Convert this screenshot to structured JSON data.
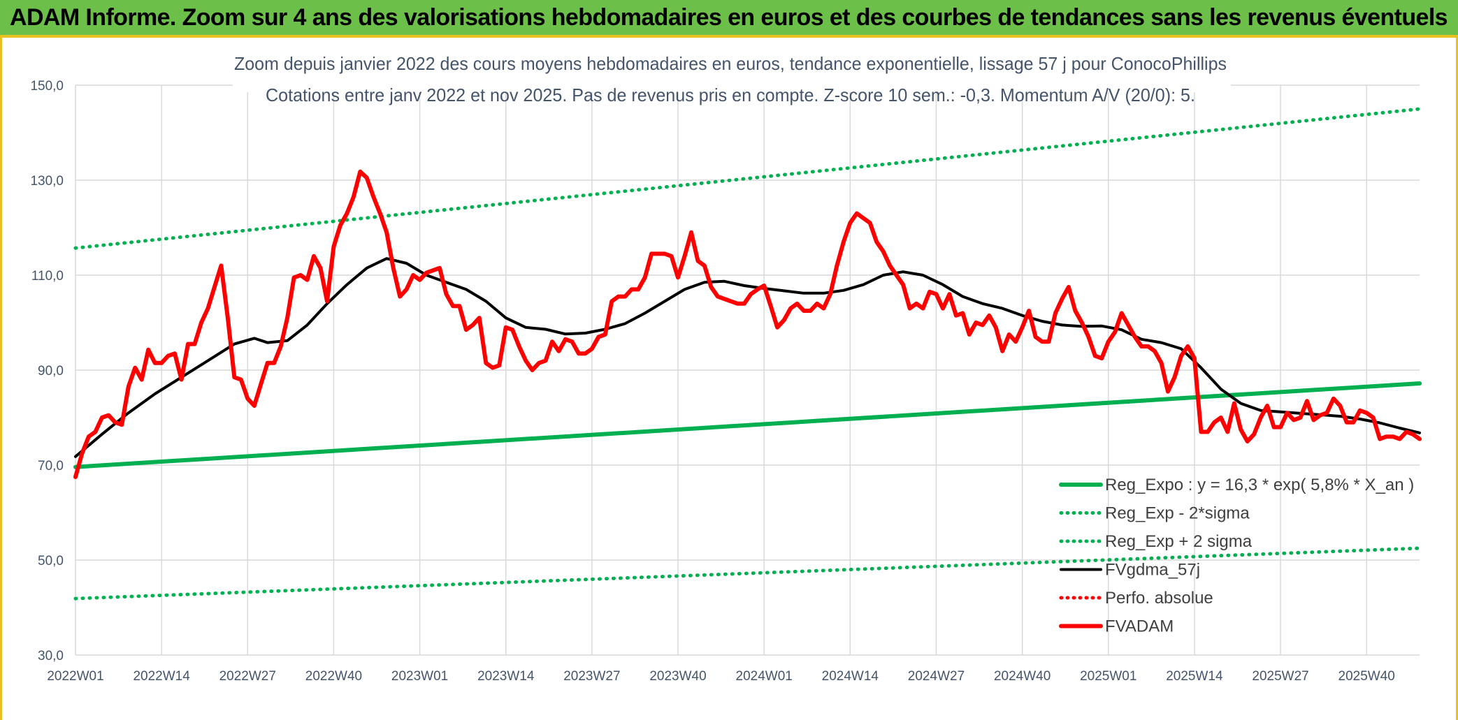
{
  "banner": {
    "title": "ADAM Informe. Zoom sur 4 ans des valorisations hebdomadaires en euros et des courbes de tendances sans les revenus éventuels"
  },
  "colors": {
    "banner_bg": "#6cc04a",
    "banner_border": "#e8c020",
    "reg_expo": "#00b050",
    "fvgdma": "#000000",
    "fvadam": "#ff0000",
    "grid": "#d9d9d9",
    "text": "#44546a"
  },
  "chart_data": {
    "type": "line",
    "title_line1": "Zoom depuis janvier 2022 des cours moyens hebdomadaires en euros, tendance exponentielle, lissage 57 j pour ConocoPhillips",
    "title_line2": "Cotations entre janv 2022 et nov 2025. Pas de revenus pris en compte. Z-score 10 sem.: -0,3. Momentum A/V (20/0): 5.",
    "ylim": [
      30,
      150
    ],
    "yticks": [
      30,
      50,
      70,
      90,
      110,
      130,
      150
    ],
    "ytick_labels": [
      "30,0",
      "50,0",
      "70,0",
      "90,0",
      "110,0",
      "130,0",
      "150,0"
    ],
    "n_weeks": 204,
    "xtick_labels": [
      "2022W01",
      "2022W14",
      "2022W27",
      "2022W40",
      "2023W01",
      "2023W14",
      "2023W27",
      "2023W40",
      "2024W01",
      "2024W14",
      "2024W27",
      "2024W40",
      "2025W01",
      "2025W14",
      "2025W27",
      "2025W40"
    ],
    "xtick_index": [
      0,
      13,
      26,
      39,
      52,
      65,
      78,
      91,
      104,
      117,
      130,
      143,
      156,
      169,
      182,
      195
    ],
    "grid": "horizontal and vertical",
    "legend_position": "bottom-right",
    "series": [
      {
        "name": "Reg_Expo : y = 16,3 * exp( 5,8% *  X_an )",
        "style": "solid-thick",
        "color": "#00b050",
        "points": [
          [
            0,
            69.6
          ],
          [
            203,
            87.2
          ]
        ]
      },
      {
        "name": "Reg_Exp - 2*sigma",
        "style": "dotted",
        "color": "#00b050",
        "points": [
          [
            0,
            41.9
          ],
          [
            203,
            52.5
          ]
        ]
      },
      {
        "name": "Reg_Exp + 2 sigma",
        "style": "dotted",
        "color": "#00b050",
        "points": [
          [
            0,
            115.7
          ],
          [
            203,
            145.0
          ]
        ]
      },
      {
        "name": "FVgdma_57j",
        "style": "solid",
        "color": "#000000",
        "points": [
          [
            0,
            71.8
          ],
          [
            4,
            76.5
          ],
          [
            8,
            81
          ],
          [
            12,
            85
          ],
          [
            16,
            88.5
          ],
          [
            20,
            92
          ],
          [
            24,
            95.5
          ],
          [
            27,
            96.7
          ],
          [
            29,
            95.8
          ],
          [
            32,
            96.2
          ],
          [
            35,
            99.5
          ],
          [
            38,
            104
          ],
          [
            41,
            108
          ],
          [
            44,
            111.5
          ],
          [
            47,
            113.5
          ],
          [
            50,
            112.5
          ],
          [
            53,
            110
          ],
          [
            56,
            108.5
          ],
          [
            59,
            107
          ],
          [
            62,
            104.5
          ],
          [
            65,
            101
          ],
          [
            68,
            99
          ],
          [
            71,
            98.6
          ],
          [
            74,
            97.6
          ],
          [
            77,
            97.8
          ],
          [
            80,
            98.6
          ],
          [
            83,
            99.8
          ],
          [
            86,
            102
          ],
          [
            89,
            104.5
          ],
          [
            92,
            107
          ],
          [
            95,
            108.5
          ],
          [
            98,
            108.7
          ],
          [
            101,
            107.8
          ],
          [
            104,
            107.2
          ],
          [
            107,
            106.7
          ],
          [
            110,
            106.2
          ],
          [
            113,
            106.2
          ],
          [
            116,
            106.8
          ],
          [
            119,
            108
          ],
          [
            122,
            110
          ],
          [
            125,
            110.7
          ],
          [
            128,
            110
          ],
          [
            131,
            108
          ],
          [
            134,
            105.5
          ],
          [
            137,
            104
          ],
          [
            140,
            103
          ],
          [
            143,
            101.5
          ],
          [
            146,
            100.3
          ],
          [
            149,
            99.5
          ],
          [
            152,
            99.2
          ],
          [
            155,
            99.3
          ],
          [
            158,
            98.5
          ],
          [
            161,
            96.5
          ],
          [
            164,
            95.8
          ],
          [
            167,
            94.5
          ],
          [
            170,
            90.5
          ],
          [
            173,
            86
          ],
          [
            176,
            83
          ],
          [
            179,
            81.5
          ],
          [
            182,
            81.2
          ],
          [
            185,
            80.9
          ],
          [
            188,
            80.6
          ],
          [
            191,
            80.3
          ],
          [
            194,
            79.7
          ],
          [
            197,
            78.9
          ],
          [
            200,
            77.8
          ],
          [
            203,
            76.8
          ]
        ]
      },
      {
        "name": "Perfo. absolue",
        "style": "dotted",
        "color": "#ff0000",
        "points": []
      },
      {
        "name": "FVADAM",
        "style": "solid-thick",
        "color": "#ff0000",
        "points": [
          [
            0,
            67.5
          ],
          [
            1,
            72.5
          ],
          [
            2,
            76
          ],
          [
            3,
            77
          ],
          [
            4,
            80
          ],
          [
            5,
            80.5
          ],
          [
            6,
            79
          ],
          [
            7,
            78.5
          ],
          [
            8,
            86.5
          ],
          [
            9,
            90.5
          ],
          [
            10,
            88
          ],
          [
            11,
            94.3
          ],
          [
            12,
            91.5
          ],
          [
            13,
            91.5
          ],
          [
            14,
            93
          ],
          [
            15,
            93.5
          ],
          [
            16,
            88
          ],
          [
            17,
            95.5
          ],
          [
            18,
            95.5
          ],
          [
            19,
            100
          ],
          [
            20,
            103
          ],
          [
            21,
            107.5
          ],
          [
            22,
            112
          ],
          [
            23,
            101
          ],
          [
            24,
            88.5
          ],
          [
            25,
            88
          ],
          [
            26,
            84
          ],
          [
            27,
            82.5
          ],
          [
            28,
            87
          ],
          [
            29,
            91.5
          ],
          [
            30,
            91.5
          ],
          [
            31,
            95
          ],
          [
            32,
            101
          ],
          [
            33,
            109.5
          ],
          [
            34,
            110
          ],
          [
            35,
            109
          ],
          [
            36,
            114
          ],
          [
            37,
            111.5
          ],
          [
            38,
            104.5
          ],
          [
            39,
            116
          ],
          [
            40,
            120.5
          ],
          [
            41,
            123
          ],
          [
            42,
            126.5
          ],
          [
            43,
            131.8
          ],
          [
            44,
            130.5
          ],
          [
            45,
            126.5
          ],
          [
            46,
            123
          ],
          [
            47,
            119
          ],
          [
            48,
            111.5
          ],
          [
            49,
            105.5
          ],
          [
            50,
            107
          ],
          [
            51,
            110
          ],
          [
            52,
            109
          ],
          [
            53,
            110.5
          ],
          [
            54,
            111
          ],
          [
            55,
            111.5
          ],
          [
            56,
            106
          ],
          [
            57,
            103.5
          ],
          [
            58,
            103.5
          ],
          [
            59,
            98.5
          ],
          [
            60,
            99.5
          ],
          [
            61,
            101
          ],
          [
            62,
            91.5
          ],
          [
            63,
            90.5
          ],
          [
            64,
            91
          ],
          [
            65,
            99
          ],
          [
            66,
            98.5
          ],
          [
            67,
            95
          ],
          [
            68,
            92
          ],
          [
            69,
            90
          ],
          [
            70,
            91.5
          ],
          [
            71,
            92
          ],
          [
            72,
            96
          ],
          [
            73,
            94
          ],
          [
            74,
            96.5
          ],
          [
            75,
            96
          ],
          [
            76,
            93.5
          ],
          [
            77,
            93.5
          ],
          [
            78,
            94.5
          ],
          [
            79,
            97
          ],
          [
            80,
            97.5
          ],
          [
            81,
            104.5
          ],
          [
            82,
            105.5
          ],
          [
            83,
            105.5
          ],
          [
            84,
            107
          ],
          [
            85,
            107
          ],
          [
            86,
            109.5
          ],
          [
            87,
            114.5
          ],
          [
            88,
            114.5
          ],
          [
            89,
            114.5
          ],
          [
            90,
            114
          ],
          [
            91,
            109.5
          ],
          [
            92,
            114
          ],
          [
            93,
            119
          ],
          [
            94,
            113
          ],
          [
            95,
            112
          ],
          [
            96,
            107.5
          ],
          [
            97,
            105.5
          ],
          [
            98,
            105
          ],
          [
            99,
            104.5
          ],
          [
            100,
            104
          ],
          [
            101,
            104
          ],
          [
            102,
            106
          ],
          [
            103,
            107
          ],
          [
            104,
            107.8
          ],
          [
            105,
            103.5
          ],
          [
            106,
            99
          ],
          [
            107,
            100.5
          ],
          [
            108,
            103
          ],
          [
            109,
            104
          ],
          [
            110,
            102.5
          ],
          [
            111,
            102.5
          ],
          [
            112,
            104
          ],
          [
            113,
            103
          ],
          [
            114,
            106
          ],
          [
            115,
            112
          ],
          [
            116,
            117
          ],
          [
            117,
            121
          ],
          [
            118,
            123
          ],
          [
            119,
            122
          ],
          [
            120,
            121
          ],
          [
            121,
            117
          ],
          [
            122,
            115
          ],
          [
            123,
            112
          ],
          [
            124,
            110
          ],
          [
            125,
            108
          ],
          [
            126,
            103
          ],
          [
            127,
            104
          ],
          [
            128,
            103
          ],
          [
            129,
            106.5
          ],
          [
            130,
            106
          ],
          [
            131,
            103
          ],
          [
            132,
            106
          ],
          [
            133,
            101.5
          ],
          [
            134,
            102
          ],
          [
            135,
            97.5
          ],
          [
            136,
            100
          ],
          [
            137,
            99.5
          ],
          [
            138,
            101.5
          ],
          [
            139,
            99
          ],
          [
            140,
            94
          ],
          [
            141,
            97.5
          ],
          [
            142,
            96
          ],
          [
            143,
            99
          ],
          [
            144,
            102.5
          ],
          [
            145,
            97
          ],
          [
            146,
            96
          ],
          [
            147,
            96
          ],
          [
            148,
            102
          ],
          [
            149,
            105
          ],
          [
            150,
            107.5
          ],
          [
            151,
            102.5
          ],
          [
            152,
            100
          ],
          [
            153,
            97
          ],
          [
            154,
            93
          ],
          [
            155,
            92.5
          ],
          [
            156,
            96
          ],
          [
            157,
            98
          ],
          [
            158,
            102
          ],
          [
            159,
            99.5
          ],
          [
            160,
            97
          ],
          [
            161,
            95
          ],
          [
            162,
            95
          ],
          [
            163,
            94
          ],
          [
            164,
            91.5
          ],
          [
            165,
            85.5
          ],
          [
            166,
            88.5
          ],
          [
            167,
            93
          ],
          [
            168,
            95
          ],
          [
            169,
            92.5
          ],
          [
            170,
            77
          ],
          [
            171,
            77
          ],
          [
            172,
            79
          ],
          [
            173,
            80
          ],
          [
            174,
            77
          ],
          [
            175,
            83
          ],
          [
            176,
            77.5
          ],
          [
            177,
            75
          ],
          [
            178,
            76.5
          ],
          [
            179,
            80
          ],
          [
            180,
            82.5
          ],
          [
            181,
            78
          ],
          [
            182,
            78
          ],
          [
            183,
            81
          ],
          [
            184,
            79.5
          ],
          [
            185,
            80
          ],
          [
            186,
            83.5
          ],
          [
            187,
            79.5
          ],
          [
            188,
            80.5
          ],
          [
            189,
            81
          ],
          [
            190,
            84
          ],
          [
            191,
            82.5
          ],
          [
            192,
            79
          ],
          [
            193,
            79
          ],
          [
            194,
            81.5
          ],
          [
            195,
            81
          ],
          [
            196,
            80
          ],
          [
            197,
            75.5
          ],
          [
            198,
            76
          ],
          [
            199,
            76
          ],
          [
            200,
            75.5
          ],
          [
            201,
            77
          ],
          [
            202,
            76.5
          ],
          [
            203,
            75.5
          ]
        ]
      }
    ]
  }
}
